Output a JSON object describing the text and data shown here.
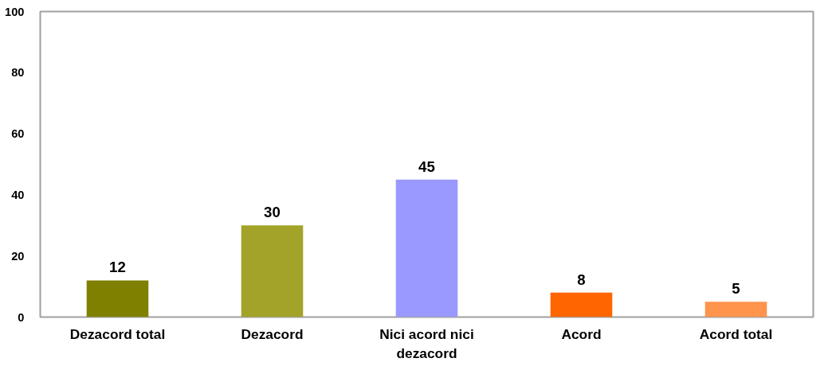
{
  "chart_data": {
    "type": "bar",
    "categories": [
      "Dezacord total",
      "Dezacord",
      "Nici acord nici dezacord",
      "Acord",
      "Acord total"
    ],
    "values": [
      12,
      30,
      45,
      8,
      5
    ],
    "colors": [
      "#808000",
      "#a3a32a",
      "#9999ff",
      "#ff6600",
      "#ff944d"
    ],
    "ylim": [
      0,
      100
    ],
    "yticks": [
      0,
      20,
      40,
      60,
      80,
      100
    ],
    "data_labels": true
  }
}
